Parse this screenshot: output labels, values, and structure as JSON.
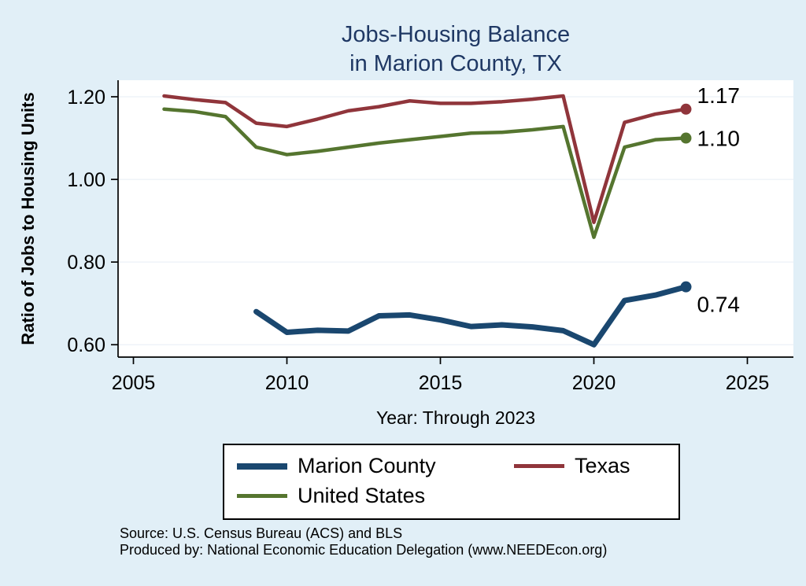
{
  "page": {
    "background": "#e1eff7"
  },
  "title": {
    "line1": "Jobs-Housing Balance",
    "line2": "in Marion County, TX",
    "color": "#1f3864"
  },
  "axes": {
    "y_label": "Ratio of Jobs to Housing Units",
    "x_label": "Year: Through 2023"
  },
  "legend": {
    "items": [
      {
        "label": "Marion County",
        "color": "#1a476f",
        "thickness": 8
      },
      {
        "label": "Texas",
        "color": "#90353b",
        "thickness": 5
      },
      {
        "label": "United States",
        "color": "#55752f",
        "thickness": 5
      }
    ]
  },
  "footer": {
    "source_line1": "Source: U.S. Census Bureau (ACS) and BLS",
    "source_line2": "Produced by: National Economic Education Delegation (www.NEEDEcon.org)"
  },
  "chart_data": {
    "type": "line",
    "title": "Jobs-Housing Balance in Marion County, TX",
    "xlabel": "Year: Through 2023",
    "ylabel": "Ratio of Jobs to Housing Units",
    "xlim": [
      2004.5,
      2026.5
    ],
    "ylim": [
      0.57,
      1.24
    ],
    "xticks": [
      2005,
      2010,
      2015,
      2020,
      2025
    ],
    "yticks": [
      0.6,
      0.8,
      1.0,
      1.2
    ],
    "ytick_labels": [
      "0.60",
      "0.80",
      "1.00",
      "1.20"
    ],
    "grid": true,
    "grid_color": "#e7eef5",
    "background": "#ffffff",
    "legend_position": "bottom",
    "series": [
      {
        "name": "Marion County",
        "color": "#1a476f",
        "width": 7,
        "marker_r": 7,
        "x": [
          2009,
          2010,
          2011,
          2012,
          2013,
          2014,
          2015,
          2016,
          2017,
          2018,
          2019,
          2020,
          2021,
          2022,
          2023
        ],
        "values": [
          0.68,
          0.63,
          0.635,
          0.633,
          0.67,
          0.672,
          0.66,
          0.644,
          0.648,
          0.643,
          0.634,
          0.6,
          0.707,
          0.72,
          0.74
        ],
        "end_label": "0.74",
        "end_label_dx": 14,
        "end_label_dy": 32
      },
      {
        "name": "Texas",
        "color": "#90353b",
        "width": 4.5,
        "marker_r": 7,
        "x": [
          2006,
          2007,
          2008,
          2009,
          2010,
          2011,
          2012,
          2013,
          2014,
          2015,
          2016,
          2017,
          2018,
          2019,
          2020,
          2021,
          2022,
          2023
        ],
        "values": [
          1.202,
          1.193,
          1.186,
          1.136,
          1.128,
          1.146,
          1.166,
          1.176,
          1.19,
          1.184,
          1.184,
          1.188,
          1.194,
          1.202,
          0.896,
          1.138,
          1.158,
          1.17
        ],
        "end_label": "1.17",
        "end_label_dx": 14,
        "end_label_dy": -8
      },
      {
        "name": "United States",
        "color": "#55752f",
        "width": 4.5,
        "marker_r": 7,
        "x": [
          2006,
          2007,
          2008,
          2009,
          2010,
          2011,
          2012,
          2013,
          2014,
          2015,
          2016,
          2017,
          2018,
          2019,
          2020,
          2021,
          2022,
          2023
        ],
        "values": [
          1.17,
          1.164,
          1.152,
          1.078,
          1.06,
          1.068,
          1.078,
          1.088,
          1.096,
          1.104,
          1.112,
          1.114,
          1.12,
          1.128,
          0.86,
          1.078,
          1.096,
          1.1
        ],
        "end_label": "1.10",
        "end_label_dx": 14,
        "end_label_dy": 10
      }
    ]
  }
}
